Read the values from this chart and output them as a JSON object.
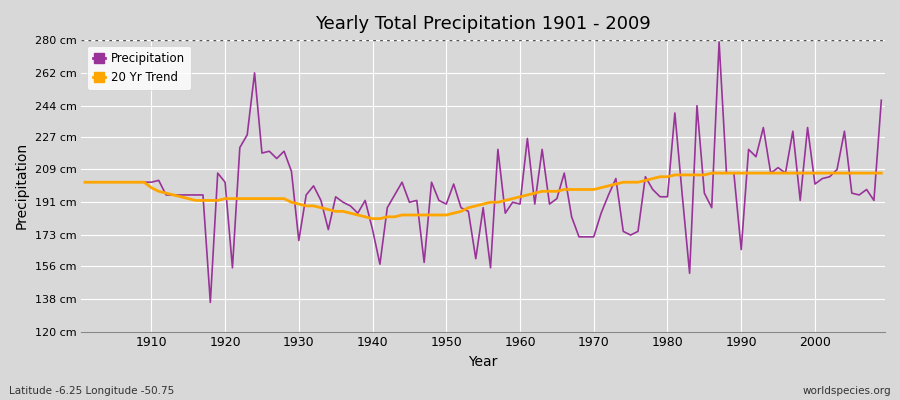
{
  "title": "Yearly Total Precipitation 1901 - 2009",
  "xlabel": "Year",
  "ylabel": "Precipitation",
  "footnote_left": "Latitude -6.25 Longitude -50.75",
  "footnote_right": "worldspecies.org",
  "ylim": [
    120,
    280
  ],
  "yticks": [
    120,
    138,
    156,
    173,
    191,
    209,
    227,
    244,
    262,
    280
  ],
  "ytick_labels": [
    "120 cm",
    "138 cm",
    "156 cm",
    "173 cm",
    "191 cm",
    "209 cm",
    "227 cm",
    "244 cm",
    "262 cm",
    "280 cm"
  ],
  "xticks": [
    1910,
    1920,
    1930,
    1940,
    1950,
    1960,
    1970,
    1980,
    1990,
    2000
  ],
  "years": [
    1901,
    1902,
    1903,
    1904,
    1905,
    1906,
    1907,
    1908,
    1909,
    1910,
    1911,
    1912,
    1913,
    1914,
    1915,
    1916,
    1917,
    1918,
    1919,
    1920,
    1921,
    1922,
    1923,
    1924,
    1925,
    1926,
    1927,
    1928,
    1929,
    1930,
    1931,
    1932,
    1933,
    1934,
    1935,
    1936,
    1937,
    1938,
    1939,
    1940,
    1941,
    1942,
    1943,
    1944,
    1945,
    1946,
    1947,
    1948,
    1949,
    1950,
    1951,
    1952,
    1953,
    1954,
    1955,
    1956,
    1957,
    1958,
    1959,
    1960,
    1961,
    1962,
    1963,
    1964,
    1965,
    1966,
    1967,
    1968,
    1969,
    1970,
    1971,
    1972,
    1973,
    1974,
    1975,
    1976,
    1977,
    1978,
    1979,
    1980,
    1981,
    1982,
    1983,
    1984,
    1985,
    1986,
    1987,
    1988,
    1989,
    1990,
    1991,
    1992,
    1993,
    1994,
    1995,
    1996,
    1997,
    1998,
    1999,
    2000,
    2001,
    2002,
    2003,
    2004,
    2005,
    2006,
    2007,
    2008,
    2009
  ],
  "precipitation": [
    202,
    202,
    202,
    202,
    202,
    202,
    202,
    202,
    202,
    202,
    203,
    195,
    195,
    195,
    195,
    195,
    195,
    136,
    207,
    202,
    155,
    221,
    228,
    262,
    218,
    219,
    215,
    219,
    208,
    170,
    195,
    200,
    192,
    176,
    194,
    191,
    189,
    185,
    192,
    176,
    157,
    188,
    195,
    202,
    191,
    192,
    158,
    202,
    192,
    190,
    201,
    188,
    186,
    160,
    188,
    155,
    220,
    185,
    191,
    190,
    226,
    190,
    220,
    190,
    193,
    207,
    183,
    172,
    172,
    172,
    185,
    195,
    204,
    175,
    173,
    175,
    205,
    198,
    194,
    194,
    240,
    195,
    152,
    244,
    196,
    188,
    279,
    207,
    207,
    165,
    220,
    216,
    232,
    207,
    210,
    207,
    230,
    192,
    232,
    201,
    204,
    205,
    209,
    230,
    196,
    195,
    198,
    192,
    247
  ],
  "trend": [
    202,
    202,
    202,
    202,
    202,
    202,
    202,
    202,
    202,
    199,
    197,
    196,
    195,
    194,
    193,
    192,
    192,
    192,
    192,
    193,
    193,
    193,
    193,
    193,
    193,
    193,
    193,
    193,
    191,
    190,
    189,
    189,
    188,
    187,
    186,
    186,
    185,
    184,
    183,
    182,
    182,
    183,
    183,
    184,
    184,
    184,
    184,
    184,
    184,
    184,
    185,
    186,
    188,
    189,
    190,
    191,
    191,
    192,
    193,
    194,
    195,
    196,
    197,
    197,
    197,
    198,
    198,
    198,
    198,
    198,
    199,
    200,
    201,
    202,
    202,
    202,
    203,
    204,
    205,
    205,
    206,
    206,
    206,
    206,
    206,
    207,
    207,
    207,
    207,
    207,
    207,
    207,
    207,
    207,
    207,
    207,
    207,
    207,
    207,
    207,
    207,
    207,
    207,
    207,
    207,
    207,
    207,
    207,
    207
  ],
  "precip_color": "#993399",
  "trend_color": "#FFA500",
  "bg_color": "#d8d8d8",
  "plot_bg_color": "#d8d8d8",
  "grid_color": "#ffffff",
  "legend_bg": "#ffffff"
}
